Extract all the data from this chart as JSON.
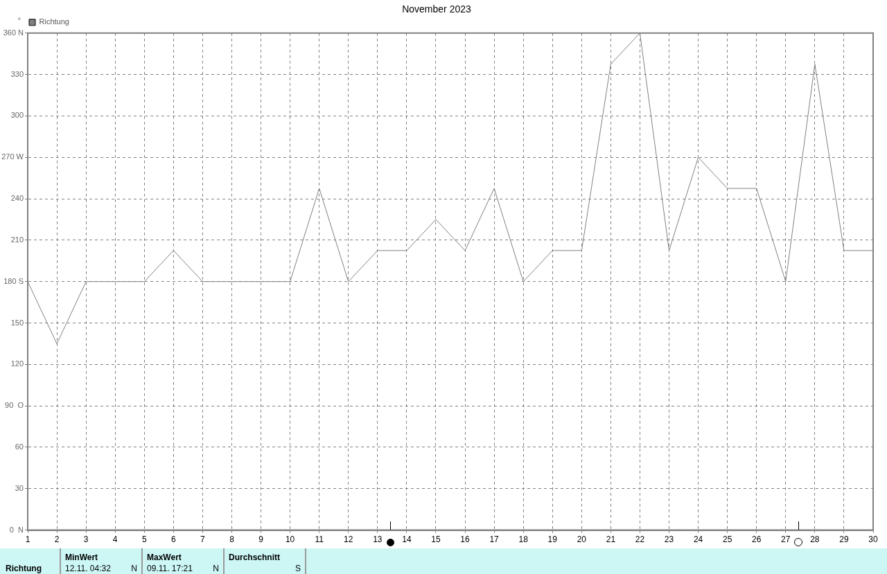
{
  "chart_data": {
    "type": "line",
    "title": "November 2023",
    "ylabel": "°",
    "x": [
      1,
      2,
      3,
      4,
      5,
      6,
      7,
      8,
      9,
      10,
      11,
      12,
      13,
      14,
      15,
      16,
      17,
      18,
      19,
      20,
      21,
      22,
      23,
      24,
      25,
      26,
      27,
      28,
      29,
      30
    ],
    "series": [
      {
        "name": "Richtung",
        "color": "#808080",
        "values": [
          180,
          135,
          180,
          180,
          180,
          202.5,
          180,
          180,
          180,
          180,
          247.5,
          180,
          202.5,
          202.5,
          225,
          202.5,
          247.5,
          180,
          202.5,
          202.5,
          337.5,
          360,
          202.5,
          270,
          247.5,
          247.5,
          180,
          337.5,
          202.5,
          202.5
        ]
      }
    ],
    "xlim": [
      1,
      30
    ],
    "xticks": [
      1,
      2,
      3,
      4,
      5,
      6,
      7,
      8,
      9,
      10,
      11,
      12,
      13,
      14,
      15,
      16,
      17,
      18,
      19,
      20,
      21,
      22,
      23,
      24,
      25,
      26,
      27,
      28,
      29,
      30
    ],
    "ylim": [
      0,
      360
    ],
    "yticks": [
      {
        "value": 0,
        "label": "0  N"
      },
      30,
      60,
      {
        "value": 90,
        "label": "90  O"
      },
      120,
      150,
      {
        "value": 180,
        "label": "180 S"
      },
      210,
      240,
      {
        "value": 270,
        "label": "270 W"
      },
      300,
      330,
      {
        "value": 360,
        "label": "360 N"
      }
    ],
    "grid": true,
    "legend": "top left",
    "marker": "none",
    "line_style": "solid",
    "annotations": [
      "Richtung",
      "MinWert",
      "12.11.  04:32",
      "N",
      "MaxWert",
      "09.11.  17:21",
      "N",
      "Durchschnitt",
      "S"
    ]
  }
}
